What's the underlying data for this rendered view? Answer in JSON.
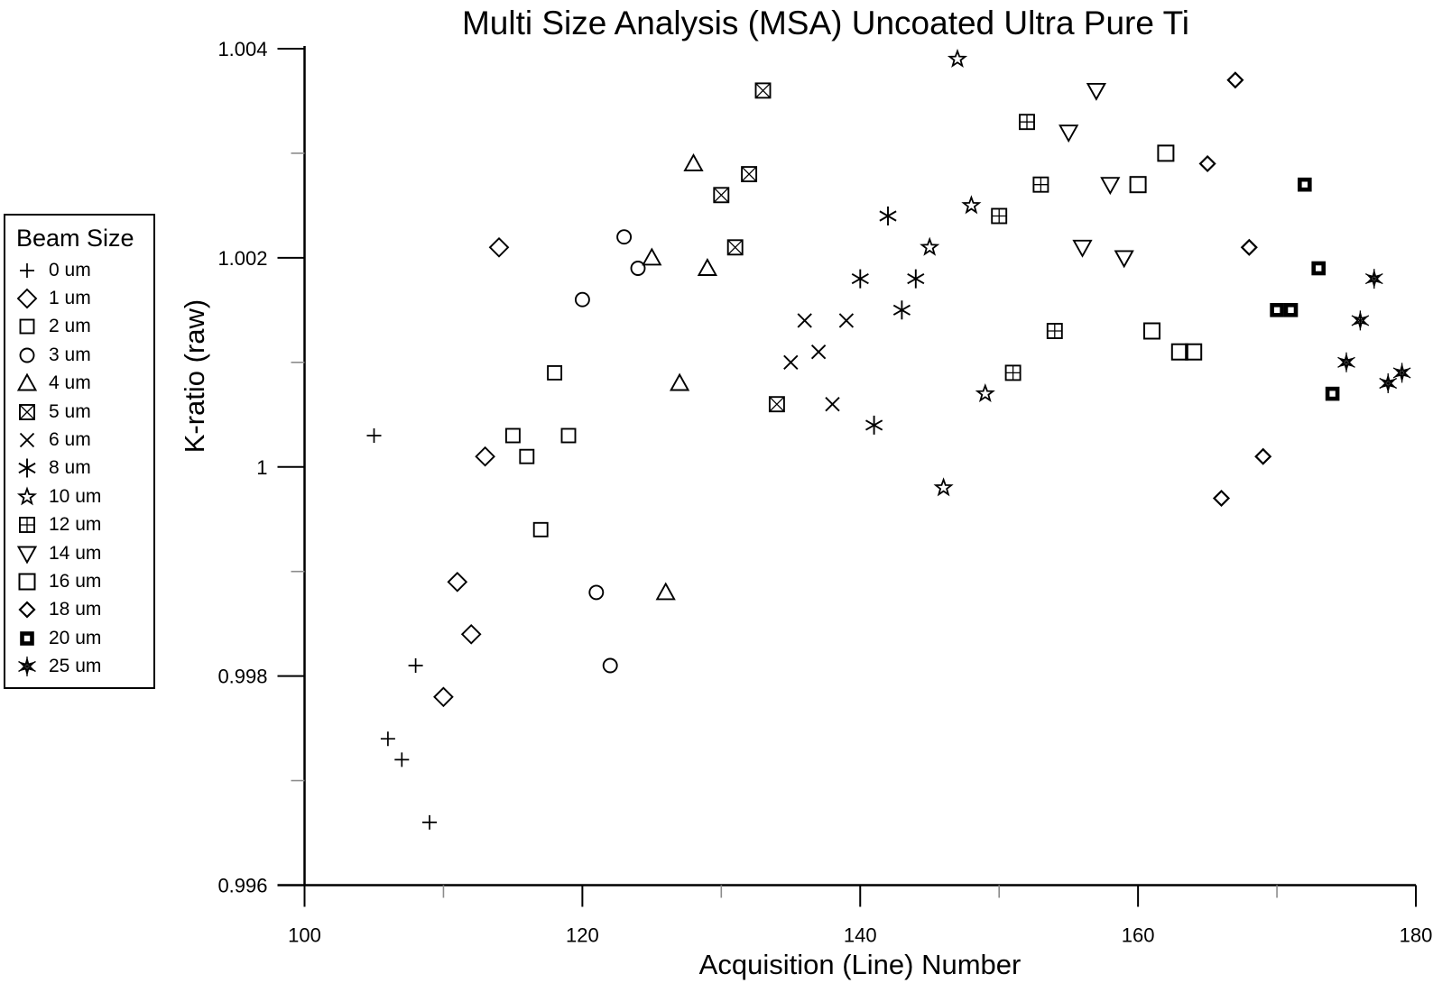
{
  "chart_data": {
    "type": "scatter",
    "title": "Multi Size Analysis (MSA) Uncoated Ultra Pure Ti",
    "xlabel": "Acquisition (Line) Number",
    "ylabel": "K-ratio (raw)",
    "xlim": [
      100,
      180
    ],
    "ylim": [
      0.996,
      1.004
    ],
    "grid": false,
    "legend_title": "Beam Size",
    "legend_position": "outside-left",
    "x_ticks_major": {
      "values": [
        100,
        120,
        140,
        160,
        180
      ],
      "labels": [
        "100",
        "120",
        "140",
        "160",
        "180"
      ]
    },
    "x_ticks_minor": [
      110,
      130,
      150,
      170
    ],
    "y_ticks_major": {
      "values": [
        1.004,
        1.002,
        1.0,
        0.998,
        0.996
      ],
      "labels": [
        "1.004",
        "1.002",
        "1",
        "0.998",
        "0.996"
      ]
    },
    "y_ticks_minor": [
      1.003,
      1.001,
      0.999,
      0.997
    ],
    "series": [
      {
        "label": "0 um",
        "marker": "plus",
        "points": [
          [
            105,
            1.0003
          ],
          [
            106,
            0.9974
          ],
          [
            107,
            0.9972
          ],
          [
            108,
            0.9981
          ],
          [
            109,
            0.9966
          ]
        ]
      },
      {
        "label": "1 um",
        "marker": "diamond",
        "points": [
          [
            110,
            0.9978
          ],
          [
            111,
            0.9989
          ],
          [
            112,
            0.9984
          ],
          [
            113,
            1.0001
          ],
          [
            114,
            1.0021
          ]
        ]
      },
      {
        "label": "2 um",
        "marker": "square",
        "points": [
          [
            115,
            1.0003
          ],
          [
            116,
            1.0001
          ],
          [
            117,
            0.9994
          ],
          [
            118,
            1.0009
          ],
          [
            119,
            1.0003
          ]
        ]
      },
      {
        "label": "3 um",
        "marker": "circle",
        "points": [
          [
            120,
            1.0016
          ],
          [
            121,
            0.9988
          ],
          [
            122,
            0.9981
          ],
          [
            123,
            1.0022
          ],
          [
            124,
            1.0019
          ]
        ]
      },
      {
        "label": "4 um",
        "marker": "triangle-up",
        "points": [
          [
            125,
            1.002
          ],
          [
            126,
            0.9988
          ],
          [
            127,
            1.0008
          ],
          [
            128,
            1.0029
          ],
          [
            129,
            1.0019
          ]
        ]
      },
      {
        "label": "5 um",
        "marker": "boxed-x",
        "points": [
          [
            130,
            1.0026
          ],
          [
            131,
            1.0021
          ],
          [
            132,
            1.0028
          ],
          [
            133,
            1.0036
          ],
          [
            134,
            1.0006
          ]
        ]
      },
      {
        "label": "6 um",
        "marker": "x-cross",
        "points": [
          [
            135,
            1.001
          ],
          [
            136,
            1.0014
          ],
          [
            137,
            1.0011
          ],
          [
            138,
            1.0006
          ],
          [
            139,
            1.0014
          ]
        ]
      },
      {
        "label": "8 um",
        "marker": "asterisk",
        "points": [
          [
            140,
            1.0018
          ],
          [
            141,
            1.0004
          ],
          [
            142,
            1.0024
          ],
          [
            143,
            1.0015
          ],
          [
            144,
            1.0018
          ]
        ]
      },
      {
        "label": "10 um",
        "marker": "star5",
        "points": [
          [
            145,
            1.0021
          ],
          [
            146,
            0.9998
          ],
          [
            147,
            1.0039
          ],
          [
            148,
            1.0025
          ],
          [
            149,
            1.0007
          ]
        ]
      },
      {
        "label": "12 um",
        "marker": "boxed-plus",
        "points": [
          [
            150,
            1.0024
          ],
          [
            151,
            1.0009
          ],
          [
            152,
            1.0033
          ],
          [
            153,
            1.0027
          ],
          [
            154,
            1.0013
          ]
        ]
      },
      {
        "label": "14 um",
        "marker": "triangle-down",
        "points": [
          [
            155,
            1.0032
          ],
          [
            156,
            1.0021
          ],
          [
            157,
            1.0036
          ],
          [
            158,
            1.0027
          ],
          [
            159,
            1.002
          ]
        ]
      },
      {
        "label": "16 um",
        "marker": "square-lg",
        "points": [
          [
            160,
            1.0027
          ],
          [
            161,
            1.0013
          ],
          [
            162,
            1.003
          ],
          [
            163,
            1.0011
          ],
          [
            164,
            1.0011
          ]
        ]
      },
      {
        "label": "18 um",
        "marker": "diamond-sm",
        "points": [
          [
            165,
            1.0029
          ],
          [
            166,
            0.9997
          ],
          [
            167,
            1.0037
          ],
          [
            168,
            1.0021
          ],
          [
            169,
            1.0001
          ]
        ]
      },
      {
        "label": "20 um",
        "marker": "square-bold",
        "points": [
          [
            170,
            1.0015
          ],
          [
            171,
            1.0015
          ],
          [
            172,
            1.0027
          ],
          [
            173,
            1.0019
          ],
          [
            174,
            1.0007
          ]
        ]
      },
      {
        "label": "25 um",
        "marker": "burst",
        "points": [
          [
            175,
            1.001
          ],
          [
            176,
            1.0014
          ],
          [
            177,
            1.0018
          ],
          [
            178,
            1.0008
          ],
          [
            179,
            1.0009
          ]
        ]
      }
    ]
  },
  "colors": {
    "marker": "#000000",
    "axis": "#000000",
    "minor_tick": "#8c8c8c",
    "background": "#ffffff"
  }
}
